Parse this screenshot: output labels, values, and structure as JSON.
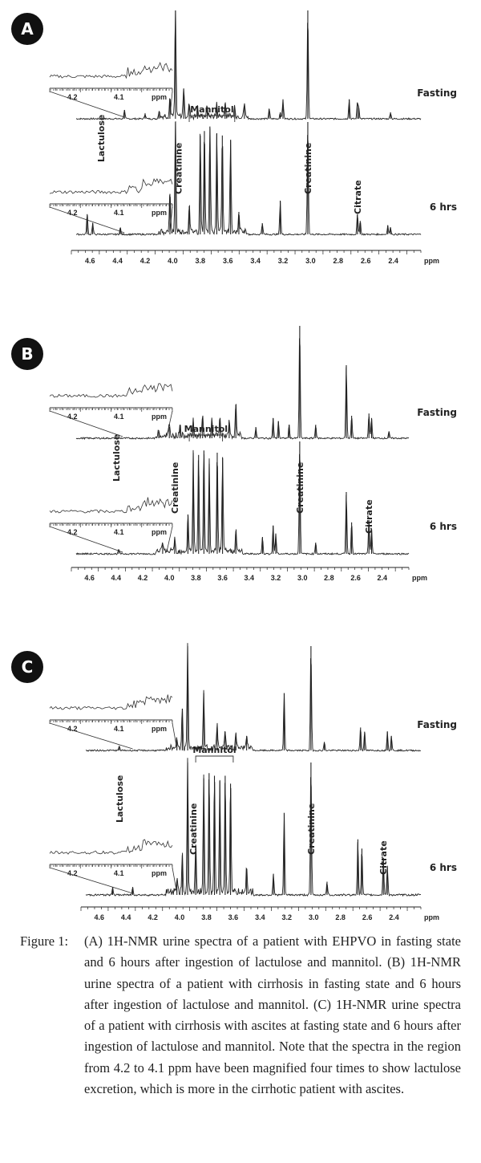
{
  "chart_data": [
    {
      "panel": "A",
      "type": "line",
      "xlabel": "ppm",
      "x_ticks": [
        "4.6",
        "4.4",
        "4.2",
        "4.0",
        "3.8",
        "3.6",
        "3.4",
        "3.2",
        "3.0",
        "2.8",
        "2.6",
        "2.4"
      ],
      "xlim": [
        4.7,
        2.2
      ],
      "inset": {
        "ticks": [
          "4.2",
          "4.1"
        ],
        "unit": "ppm"
      },
      "series": [
        {
          "name": "Fasting",
          "peaks": [
            [
              4.35,
              8
            ],
            [
              4.2,
              5
            ],
            [
              4.1,
              6
            ],
            [
              4.02,
              18
            ],
            [
              3.98,
              100
            ],
            [
              3.92,
              28
            ],
            [
              3.88,
              12
            ],
            [
              3.82,
              8
            ],
            [
              3.75,
              10
            ],
            [
              3.68,
              12
            ],
            [
              3.62,
              14
            ],
            [
              3.55,
              10
            ],
            [
              3.48,
              12
            ],
            [
              3.3,
              9
            ],
            [
              3.22,
              6
            ],
            [
              3.2,
              18
            ],
            [
              3.02,
              100
            ],
            [
              2.72,
              18
            ],
            [
              2.66,
              15
            ],
            [
              2.65,
              10
            ],
            [
              2.42,
              6
            ]
          ],
          "annotations": []
        },
        {
          "name": "6 hrs",
          "peaks": [
            [
              4.62,
              18
            ],
            [
              4.58,
              10
            ],
            [
              4.38,
              6
            ],
            [
              4.02,
              36
            ],
            [
              3.98,
              100
            ],
            [
              3.88,
              25
            ],
            [
              3.8,
              88
            ],
            [
              3.77,
              92
            ],
            [
              3.73,
              96
            ],
            [
              3.68,
              90
            ],
            [
              3.64,
              88
            ],
            [
              3.58,
              84
            ],
            [
              3.52,
              20
            ],
            [
              3.35,
              10
            ],
            [
              3.22,
              30
            ],
            [
              3.02,
              100
            ],
            [
              2.66,
              18
            ],
            [
              2.64,
              12
            ],
            [
              2.44,
              8
            ],
            [
              2.42,
              6
            ]
          ],
          "annotations": [
            {
              "label": "Lactulose",
              "x": 4.52,
              "inset": true
            },
            {
              "label": "Creatinine",
              "x": 3.96
            },
            {
              "label": "Mannitol",
              "x": 3.7,
              "bracket": [
                3.88,
                3.55
              ]
            },
            {
              "label": "Creatinine",
              "x": 3.02
            },
            {
              "label": "Citrate",
              "x": 2.66
            }
          ]
        }
      ]
    },
    {
      "panel": "B",
      "type": "line",
      "xlabel": "ppm",
      "x_ticks": [
        "4.6",
        "4.4",
        "4.2",
        "4.0",
        "3.8",
        "3.6",
        "3.4",
        "3.2",
        "3.0",
        "2.8",
        "2.6",
        "2.4"
      ],
      "xlim": [
        4.7,
        2.2
      ],
      "inset": {
        "ticks": [
          "4.2",
          "4.1"
        ],
        "unit": "ppm"
      },
      "series": [
        {
          "name": "Fasting",
          "peaks": [
            [
              4.08,
              6
            ],
            [
              4.0,
              10
            ],
            [
              3.92,
              12
            ],
            [
              3.82,
              14
            ],
            [
              3.75,
              18
            ],
            [
              3.68,
              14
            ],
            [
              3.62,
              16
            ],
            [
              3.55,
              12
            ],
            [
              3.5,
              30
            ],
            [
              3.35,
              10
            ],
            [
              3.22,
              18
            ],
            [
              3.18,
              15
            ],
            [
              3.1,
              12
            ],
            [
              3.02,
              100
            ],
            [
              2.9,
              12
            ],
            [
              2.67,
              65
            ],
            [
              2.63,
              20
            ],
            [
              2.5,
              22
            ],
            [
              2.48,
              18
            ],
            [
              2.35,
              6
            ]
          ],
          "annotations": []
        },
        {
          "name": "6 hrs",
          "peaks": [
            [
              4.38,
              4
            ],
            [
              4.05,
              8
            ],
            [
              3.96,
              12
            ],
            [
              3.86,
              35
            ],
            [
              3.82,
              90
            ],
            [
              3.78,
              88
            ],
            [
              3.74,
              92
            ],
            [
              3.7,
              80
            ],
            [
              3.64,
              90
            ],
            [
              3.6,
              86
            ],
            [
              3.5,
              20
            ],
            [
              3.3,
              15
            ],
            [
              3.22,
              25
            ],
            [
              3.2,
              18
            ],
            [
              3.02,
              100
            ],
            [
              2.9,
              10
            ],
            [
              2.67,
              55
            ],
            [
              2.63,
              28
            ],
            [
              2.5,
              30
            ],
            [
              2.48,
              22
            ]
          ],
          "annotations": [
            {
              "label": "Lactulose",
              "x": 4.4,
              "inset": true
            },
            {
              "label": "Creatinine",
              "x": 3.96
            },
            {
              "label": "Mannitol",
              "x": 3.72,
              "bracket": [
                3.85,
                3.6
              ]
            },
            {
              "label": "Creatinine",
              "x": 3.02
            },
            {
              "label": "Citrate",
              "x": 2.5
            }
          ]
        }
      ]
    },
    {
      "panel": "C",
      "type": "line",
      "xlabel": "ppm",
      "x_ticks": [
        "4.6",
        "4.4",
        "4.2",
        "4.0",
        "3.8",
        "3.6",
        "3.4",
        "3.2",
        "3.0",
        "2.8",
        "2.6",
        "2.4"
      ],
      "xlim": [
        4.7,
        2.2
      ],
      "inset": {
        "ticks": [
          "4.2",
          "4.1"
        ],
        "unit": "ppm"
      },
      "series": [
        {
          "name": "Fasting",
          "peaks": [
            [
              4.45,
              4
            ],
            [
              4.02,
              10
            ],
            [
              3.98,
              40
            ],
            [
              3.94,
              100
            ],
            [
              3.82,
              55
            ],
            [
              3.72,
              22
            ],
            [
              3.66,
              18
            ],
            [
              3.58,
              16
            ],
            [
              3.5,
              14
            ],
            [
              3.22,
              55
            ],
            [
              3.02,
              100
            ],
            [
              2.92,
              8
            ],
            [
              2.65,
              22
            ],
            [
              2.62,
              18
            ],
            [
              2.45,
              18
            ],
            [
              2.42,
              14
            ]
          ],
          "annotations": []
        },
        {
          "name": "6 hrs",
          "peaks": [
            [
              4.5,
              6
            ],
            [
              4.35,
              6
            ],
            [
              4.02,
              10
            ],
            [
              3.98,
              30
            ],
            [
              3.94,
              100
            ],
            [
              3.88,
              38
            ],
            [
              3.82,
              88
            ],
            [
              3.78,
              92
            ],
            [
              3.74,
              90
            ],
            [
              3.7,
              86
            ],
            [
              3.66,
              90
            ],
            [
              3.62,
              84
            ],
            [
              3.5,
              20
            ],
            [
              3.3,
              16
            ],
            [
              3.22,
              62
            ],
            [
              3.02,
              100
            ],
            [
              2.9,
              10
            ],
            [
              2.67,
              42
            ],
            [
              2.64,
              35
            ],
            [
              2.48,
              28
            ],
            [
              2.45,
              22
            ]
          ],
          "annotations": [
            {
              "label": "Lactulose",
              "x": 4.45,
              "inset": true
            },
            {
              "label": "Creatinine",
              "x": 3.9
            },
            {
              "label": "Mannitol",
              "x": 3.72,
              "bracket": [
                3.88,
                3.6
              ]
            },
            {
              "label": "Creatinine",
              "x": 3.02
            },
            {
              "label": "Citrate",
              "x": 2.48
            }
          ]
        }
      ]
    }
  ],
  "figure": {
    "panels": [
      "A",
      "B",
      "C"
    ],
    "condition_labels": [
      "Fasting",
      "6 hrs"
    ],
    "ppm_unit": "ppm",
    "caption_label": "Figure 1:",
    "caption_text": "(A) 1H-NMR urine spectra of a patient with EHPVO in fasting state and 6 hours after ingestion of lactulose and mannitol. (B) 1H-NMR urine spectra of a patient with cirrhosis in fasting state and 6 hours after ingestion of lactulose and mannitol. (C) 1H-NMR urine spectra of a patient with cirrhosis with ascites at fasting state and 6 hours after ingestion of lactulose and mannitol. Note that the spectra in the region from 4.2 to 4.1 ppm have been magnified four times to show lactulose excretion, which is more in the cirrhotic patient with ascites."
  }
}
